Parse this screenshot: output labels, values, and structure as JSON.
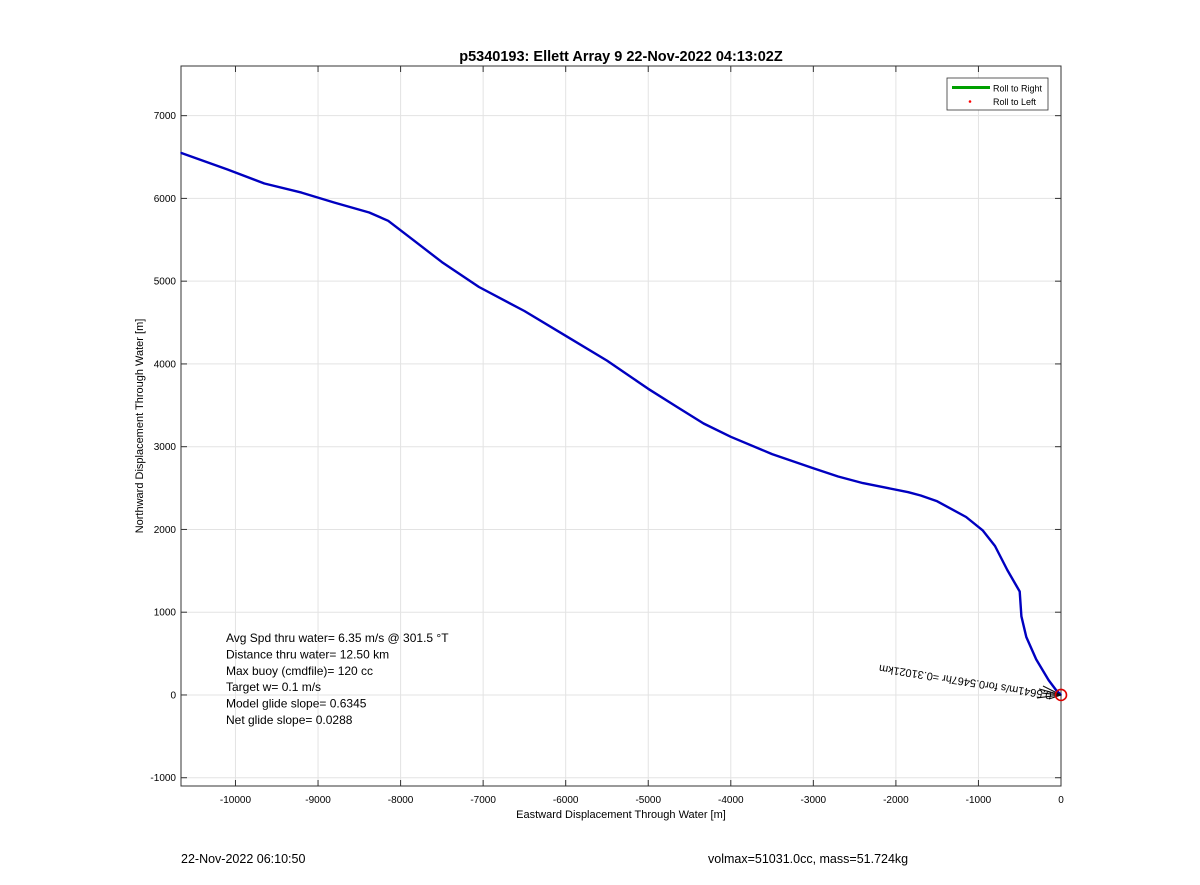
{
  "chart_data": {
    "type": "line",
    "title": "p5340193: Ellett Array 9 22-Nov-2022 04:13:02Z",
    "xlabel": "Eastward Displacement Through Water [m]",
    "ylabel": "Northward Displacement Through Water [m]",
    "xlim": [
      -10660,
      0
    ],
    "ylim": [
      -1100,
      7600
    ],
    "xticks": [
      -10000,
      -9000,
      -8000,
      -7000,
      -6000,
      -5000,
      -4000,
      -3000,
      -2000,
      -1000,
      0
    ],
    "yticks": [
      -1000,
      0,
      1000,
      2000,
      3000,
      4000,
      5000,
      6000,
      7000
    ],
    "grid": true,
    "legend_position": "top-right",
    "legend": [
      {
        "label": "Roll to Right",
        "color": "#00a000",
        "marker": "line"
      },
      {
        "label": "Roll to Left",
        "color": "#ff0000",
        "marker": "dot"
      }
    ],
    "series": [
      {
        "color": "#0000c0",
        "x": [
          -10660,
          -10100,
          -9650,
          -9200,
          -8800,
          -8380,
          -8150,
          -7850,
          -7500,
          -7050,
          -6500,
          -6000,
          -5500,
          -5000,
          -4650,
          -4330,
          -4000,
          -3500,
          -3000,
          -2700,
          -2400,
          -2150,
          -1850,
          -1700,
          -1500,
          -1150,
          -950,
          -800,
          -650,
          -500,
          -480,
          -420,
          -300,
          -150,
          -60,
          0
        ],
        "y": [
          6550,
          6350,
          6180,
          6070,
          5950,
          5830,
          5730,
          5500,
          5230,
          4930,
          4640,
          4340,
          4040,
          3700,
          3480,
          3280,
          3120,
          2910,
          2740,
          2640,
          2560,
          2510,
          2450,
          2410,
          2340,
          2150,
          1990,
          1800,
          1510,
          1250,
          950,
          700,
          430,
          180,
          60,
          0
        ]
      }
    ],
    "annotations": [
      {
        "text": "Avg Spd thru water=  6.35 m/s @ 301.5 °T"
      },
      {
        "text": "Distance thru water= 12.50 km"
      },
      {
        "text": "Max buoy (cmdfile)= 120 cc"
      },
      {
        "text": "Target w= 0.1 m/s"
      },
      {
        "text": "Model glide slope= 0.6345"
      },
      {
        "text": "Net glide slope= 0.0288"
      }
    ],
    "rotated_label": "0.5641m/s for0.5467hr =0.31021km",
    "end_marker": {
      "x": 0,
      "y": 0,
      "color": "#dd0000"
    }
  },
  "footer": {
    "left": "22-Nov-2022 06:10:50",
    "right": "volmax=51031.0cc, mass=51.724kg"
  }
}
